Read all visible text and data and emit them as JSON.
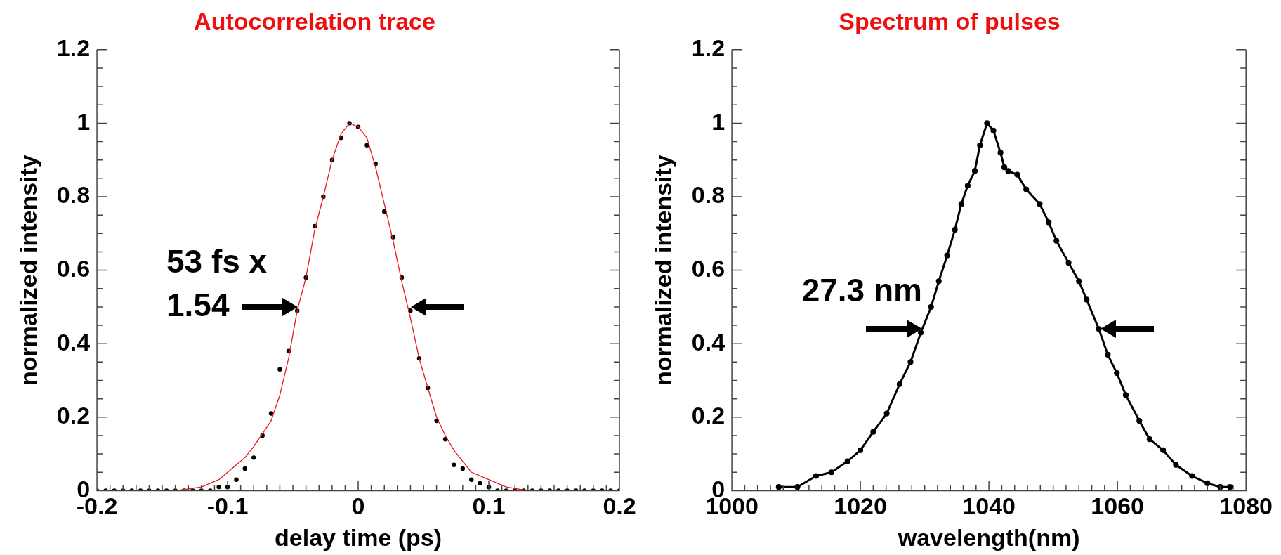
{
  "chart_data": [
    {
      "type": "scatter",
      "title": "Autocorrelation trace",
      "xlabel": "delay time (ps)",
      "ylabel": "normalized intensity",
      "xlim": [
        -0.2,
        0.2
      ],
      "ylim": [
        0,
        1.2
      ],
      "xticks": [
        -0.2,
        {
          "value": -0.19,
          "label": null
        },
        {
          "value": -0.18,
          "label": null
        },
        {
          "value": -0.17,
          "label": null
        },
        {
          "value": -0.16,
          "label": null
        },
        {
          "value": -0.15,
          "label": null
        },
        {
          "value": -0.14,
          "label": null
        },
        {
          "value": -0.13,
          "label": null
        },
        {
          "value": -0.12,
          "label": null
        },
        {
          "value": -0.11,
          "label": null
        },
        -0.1,
        {
          "value": -0.09,
          "label": null
        },
        {
          "value": -0.08,
          "label": null
        },
        {
          "value": -0.07,
          "label": null
        },
        {
          "value": -0.06,
          "label": null
        },
        {
          "value": -0.05,
          "label": null
        },
        {
          "value": -0.04,
          "label": null
        },
        {
          "value": -0.03,
          "label": null
        },
        {
          "value": -0.02,
          "label": null
        },
        {
          "value": -0.01,
          "label": null
        },
        0,
        {
          "value": 0.01,
          "label": null
        },
        {
          "value": 0.02,
          "label": null
        },
        {
          "value": 0.03,
          "label": null
        },
        {
          "value": 0.04,
          "label": null
        },
        {
          "value": 0.05,
          "label": null
        },
        {
          "value": 0.06,
          "label": null
        },
        {
          "value": 0.07,
          "label": null
        },
        {
          "value": 0.08,
          "label": null
        },
        {
          "value": 0.09,
          "label": null
        },
        0.1,
        {
          "value": 0.11,
          "label": null
        },
        {
          "value": 0.12,
          "label": null
        },
        {
          "value": 0.13,
          "label": null
        },
        {
          "value": 0.14,
          "label": null
        },
        {
          "value": 0.15,
          "label": null
        },
        {
          "value": 0.16,
          "label": null
        },
        {
          "value": 0.17,
          "label": null
        },
        {
          "value": 0.18,
          "label": null
        },
        {
          "value": 0.19,
          "label": null
        },
        0.2
      ],
      "yticks": [
        0,
        {
          "value": 0.05,
          "label": null
        },
        {
          "value": 0.1,
          "label": null
        },
        {
          "value": 0.15,
          "label": null
        },
        0.2,
        {
          "value": 0.25,
          "label": null
        },
        {
          "value": 0.3,
          "label": null
        },
        {
          "value": 0.35,
          "label": null
        },
        0.4,
        {
          "value": 0.45,
          "label": null
        },
        {
          "value": 0.5,
          "label": null
        },
        {
          "value": 0.55,
          "label": null
        },
        0.6,
        {
          "value": 0.65,
          "label": null
        },
        {
          "value": 0.7,
          "label": null
        },
        {
          "value": 0.75,
          "label": null
        },
        0.8,
        {
          "value": 0.85,
          "label": null
        },
        {
          "value": 0.9,
          "label": null
        },
        {
          "value": 0.95,
          "label": null
        },
        1,
        {
          "value": 1.05,
          "label": null
        },
        {
          "value": 1.1,
          "label": null
        },
        {
          "value": 1.15,
          "label": null
        },
        1.2
      ],
      "legend": false,
      "annotations": [
        {
          "text": "53 fs x 1.54",
          "x": -0.046,
          "y": 0.5
        }
      ],
      "series": [
        {
          "marker": "circle",
          "color": "#000000",
          "x": [
            -0.2,
            -0.1933,
            -0.1867,
            -0.18,
            -0.1733,
            -0.1667,
            -0.16,
            -0.1533,
            -0.1467,
            -0.14,
            -0.1333,
            -0.1267,
            -0.12,
            -0.1133,
            -0.1067,
            -0.1,
            -0.0933,
            -0.0867,
            -0.08,
            -0.0733,
            -0.0667,
            -0.06,
            -0.0533,
            -0.0467,
            -0.04,
            -0.0333,
            -0.0267,
            -0.02,
            -0.0133,
            -0.0067,
            0,
            0.0067,
            0.0133,
            0.02,
            0.0267,
            0.0333,
            0.04,
            0.0467,
            0.0533,
            0.06,
            0.0667,
            0.0733,
            0.08,
            0.0867,
            0.0933,
            0.1,
            0.1067,
            0.1133,
            0.12,
            0.1267,
            0.1333,
            0.14,
            0.1467,
            0.1533,
            0.16,
            0.1667,
            0.1733,
            0.18,
            0.1867,
            0.1933,
            0.2
          ],
          "values": [
            0,
            0,
            0,
            0,
            0,
            0,
            0,
            0,
            0,
            0,
            0,
            0,
            0,
            0,
            0.01,
            0.01,
            0.03,
            0.06,
            0.09,
            0.15,
            0.21,
            0.33,
            0.38,
            0.49,
            0.58,
            0.72,
            0.8,
            0.9,
            0.96,
            1.0,
            0.99,
            0.94,
            0.89,
            0.76,
            0.69,
            0.58,
            0.49,
            0.36,
            0.28,
            0.19,
            0.14,
            0.07,
            0.06,
            0.03,
            0.02,
            0.01,
            0,
            0,
            0,
            0,
            0,
            0,
            0,
            0,
            0,
            0,
            0,
            0,
            0,
            0,
            0
          ]
        },
        {
          "type": "line",
          "marker": "none",
          "color": "#e8161b",
          "x": [
            -0.2,
            -0.16,
            -0.14,
            -0.12,
            -0.1067,
            -0.1,
            -0.0867,
            -0.08,
            -0.0667,
            -0.06,
            -0.0533,
            -0.0467,
            -0.04,
            -0.0333,
            -0.0267,
            -0.02,
            -0.0133,
            -0.0067,
            0,
            0.0067,
            0.0133,
            0.02,
            0.0267,
            0.0333,
            0.04,
            0.0467,
            0.0533,
            0.06,
            0.0667,
            0.0733,
            0.08,
            0.0867,
            0.1,
            0.1133,
            0.13,
            0.15,
            0.2
          ],
          "values": [
            0,
            0,
            0,
            0.01,
            0.03,
            0.05,
            0.09,
            0.12,
            0.19,
            0.26,
            0.36,
            0.49,
            0.58,
            0.71,
            0.8,
            0.9,
            0.97,
            1.0,
            0.99,
            0.96,
            0.88,
            0.78,
            0.68,
            0.57,
            0.47,
            0.36,
            0.28,
            0.2,
            0.15,
            0.11,
            0.08,
            0.05,
            0.03,
            0.01,
            0,
            0,
            0
          ]
        }
      ]
    },
    {
      "type": "line",
      "title": "Spectrum of pulses",
      "xlabel": "wavelength(nm)",
      "ylabel": "normalized intensity",
      "xlim": [
        1000,
        1080
      ],
      "ylim": [
        0,
        1.2
      ],
      "xticks": [
        1000,
        {
          "value": 1002,
          "label": null
        },
        {
          "value": 1004,
          "label": null
        },
        {
          "value": 1006,
          "label": null
        },
        {
          "value": 1008,
          "label": null
        },
        {
          "value": 1010,
          "label": null
        },
        {
          "value": 1012,
          "label": null
        },
        {
          "value": 1014,
          "label": null
        },
        {
          "value": 1016,
          "label": null
        },
        {
          "value": 1018,
          "label": null
        },
        1020,
        {
          "value": 1022,
          "label": null
        },
        {
          "value": 1024,
          "label": null
        },
        {
          "value": 1026,
          "label": null
        },
        {
          "value": 1028,
          "label": null
        },
        {
          "value": 1030,
          "label": null
        },
        {
          "value": 1032,
          "label": null
        },
        {
          "value": 1034,
          "label": null
        },
        {
          "value": 1036,
          "label": null
        },
        {
          "value": 1038,
          "label": null
        },
        1040,
        {
          "value": 1042,
          "label": null
        },
        {
          "value": 1044,
          "label": null
        },
        {
          "value": 1046,
          "label": null
        },
        {
          "value": 1048,
          "label": null
        },
        {
          "value": 1050,
          "label": null
        },
        {
          "value": 1052,
          "label": null
        },
        {
          "value": 1054,
          "label": null
        },
        {
          "value": 1056,
          "label": null
        },
        {
          "value": 1058,
          "label": null
        },
        1060,
        {
          "value": 1062,
          "label": null
        },
        {
          "value": 1064,
          "label": null
        },
        {
          "value": 1066,
          "label": null
        },
        {
          "value": 1068,
          "label": null
        },
        {
          "value": 1070,
          "label": null
        },
        {
          "value": 1072,
          "label": null
        },
        {
          "value": 1074,
          "label": null
        },
        {
          "value": 1076,
          "label": null
        },
        {
          "value": 1078,
          "label": null
        },
        1080
      ],
      "yticks": [
        0,
        {
          "value": 0.05,
          "label": null
        },
        {
          "value": 0.1,
          "label": null
        },
        {
          "value": 0.15,
          "label": null
        },
        0.2,
        {
          "value": 0.25,
          "label": null
        },
        {
          "value": 0.3,
          "label": null
        },
        {
          "value": 0.35,
          "label": null
        },
        0.4,
        {
          "value": 0.45,
          "label": null
        },
        {
          "value": 0.5,
          "label": null
        },
        {
          "value": 0.55,
          "label": null
        },
        0.6,
        {
          "value": 0.65,
          "label": null
        },
        {
          "value": 0.7,
          "label": null
        },
        {
          "value": 0.75,
          "label": null
        },
        0.8,
        {
          "value": 0.85,
          "label": null
        },
        {
          "value": 0.9,
          "label": null
        },
        {
          "value": 0.95,
          "label": null
        },
        1,
        {
          "value": 1.05,
          "label": null
        },
        {
          "value": 1.1,
          "label": null
        },
        {
          "value": 1.15,
          "label": null
        },
        1.2
      ],
      "legend": false,
      "annotations": [
        {
          "text": "27.3 nm",
          "x": 1029.6,
          "y": 0.44
        }
      ],
      "series": [
        {
          "marker": "circle",
          "color": "#000000",
          "x": [
            1007.3,
            1010.2,
            1013.1,
            1015.5,
            1018,
            1020,
            1022,
            1024.1,
            1026.1,
            1027.8,
            1029.4,
            1031,
            1032.2,
            1033.5,
            1034.7,
            1035.7,
            1036.7,
            1037.8,
            1038.6,
            1039.7,
            1040.7,
            1041.8,
            1042.4,
            1043,
            1044.4,
            1045.8,
            1047.9,
            1049.3,
            1050.5,
            1052.4,
            1054,
            1055.2,
            1057.1,
            1058.5,
            1059.9,
            1061.3,
            1063.4,
            1065,
            1067.1,
            1069.1,
            1071.6,
            1074,
            1076,
            1077.5
          ],
          "values": [
            0.01,
            0.01,
            0.04,
            0.05,
            0.08,
            0.11,
            0.16,
            0.21,
            0.29,
            0.35,
            0.43,
            0.5,
            0.57,
            0.64,
            0.71,
            0.78,
            0.83,
            0.87,
            0.94,
            1.0,
            0.98,
            0.92,
            0.88,
            0.87,
            0.86,
            0.82,
            0.78,
            0.73,
            0.68,
            0.62,
            0.57,
            0.52,
            0.44,
            0.37,
            0.32,
            0.26,
            0.19,
            0.14,
            0.11,
            0.07,
            0.04,
            0.02,
            0.01,
            0.01
          ]
        }
      ]
    }
  ]
}
